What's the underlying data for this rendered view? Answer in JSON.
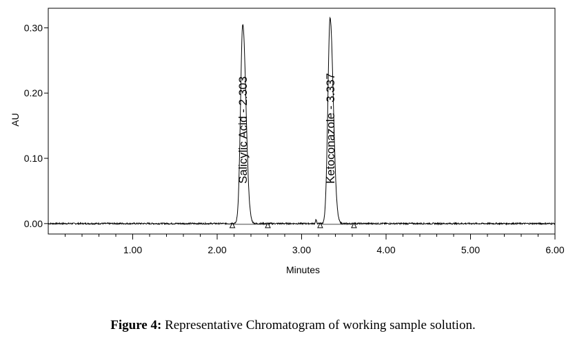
{
  "chart_data": {
    "type": "line",
    "xlabel": "Minutes",
    "ylabel": "AU",
    "xlim": [
      0,
      6.0
    ],
    "ylim": [
      -0.016,
      0.33
    ],
    "x_ticks": [
      1.0,
      2.0,
      3.0,
      4.0,
      5.0,
      6.0
    ],
    "x_tick_labels": [
      "1.00",
      "2.00",
      "3.00",
      "4.00",
      "5.00",
      "6.00"
    ],
    "x_minor_step": 0.2,
    "y_ticks": [
      0.0,
      0.1,
      0.2,
      0.3
    ],
    "y_tick_labels": [
      "0.00",
      "0.10",
      "0.20",
      "0.30"
    ],
    "grid": false,
    "line_color": "#000000",
    "peaks": [
      {
        "label": "Salicylic Acid - 2.303",
        "rt": 2.303,
        "height": 0.305,
        "start": 2.18,
        "end": 2.6
      },
      {
        "label": "Ketoconazole - 3.337",
        "rt": 3.337,
        "height": 0.315,
        "start": 3.22,
        "end": 3.62
      }
    ],
    "baseline": 0.0
  },
  "caption": {
    "label": "Figure 4:",
    "text": " Representative Chromatogram of working sample solution."
  }
}
